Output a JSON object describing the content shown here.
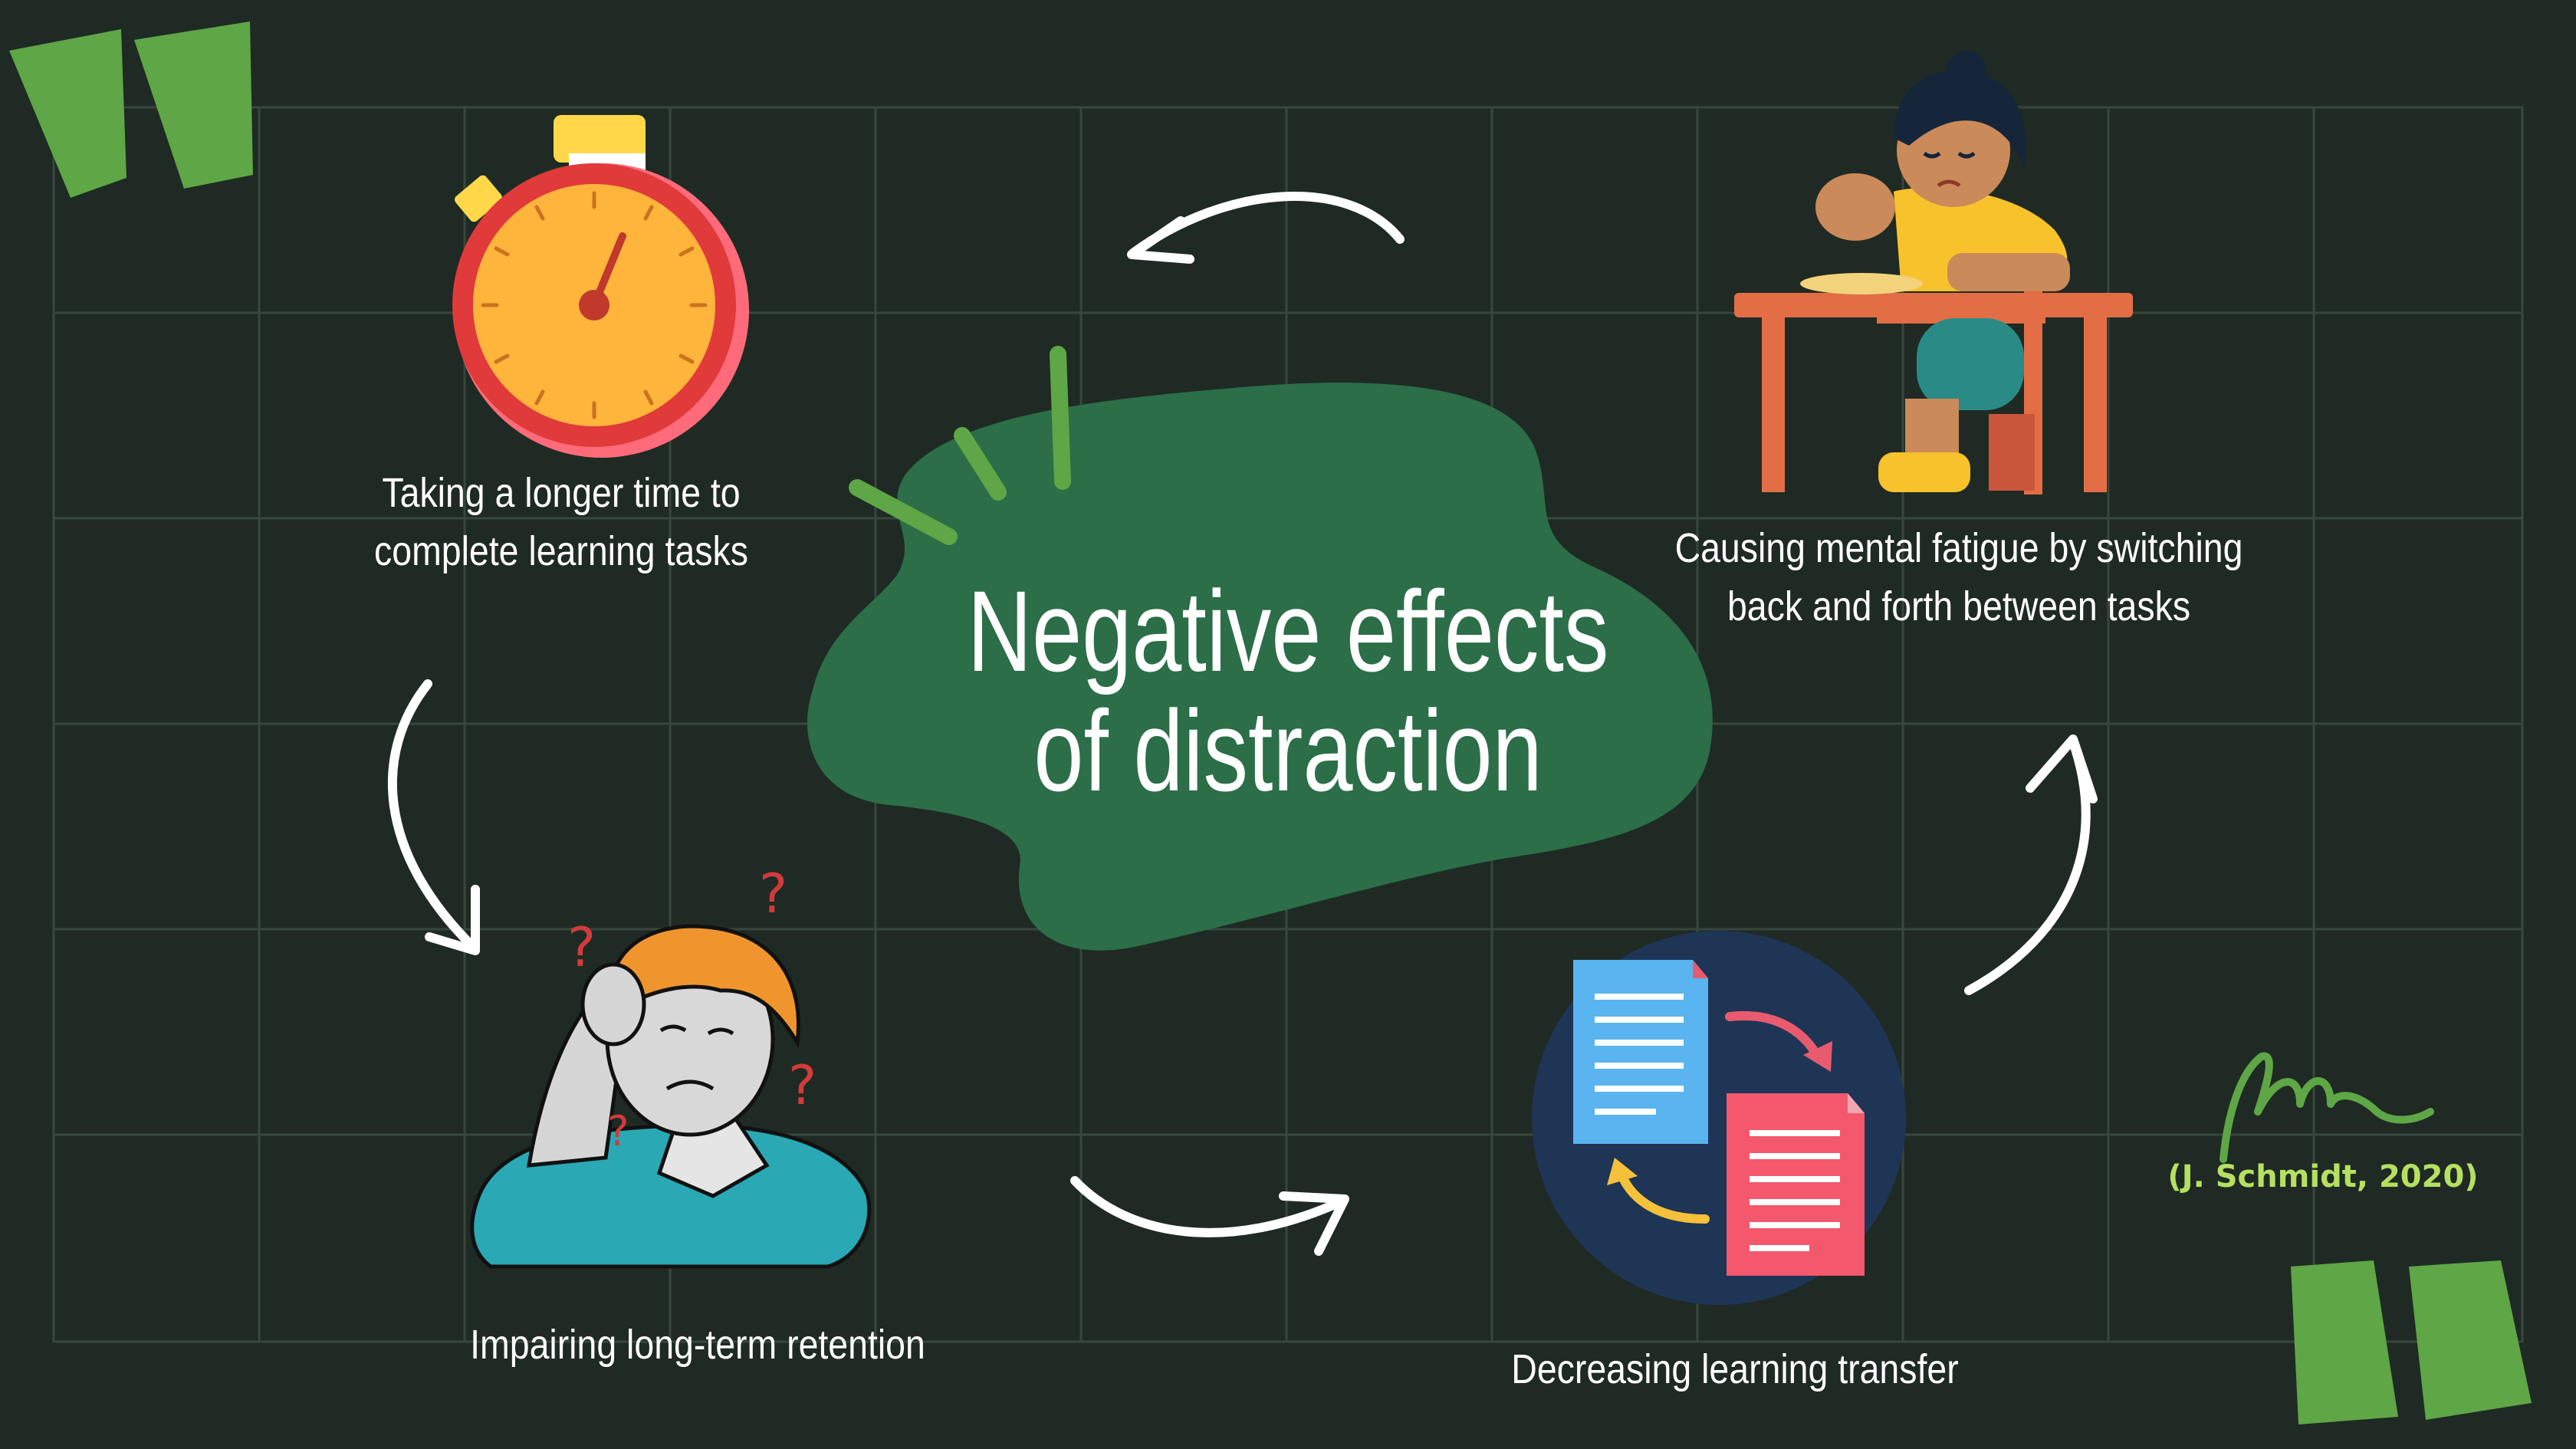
{
  "title": {
    "line1": "Negative effects",
    "line2": "of distraction"
  },
  "effects": [
    {
      "line1": "Taking a longer time to",
      "line2": "complete learning tasks",
      "icon": "stopwatch-icon"
    },
    {
      "line1": "Causing mental fatigue by switching",
      "line2": "back and forth between tasks",
      "icon": "tired-student-at-desk-icon"
    },
    {
      "line1": "Decreasing learning transfer",
      "icon": "documents-transfer-icon"
    },
    {
      "line1": "Impairing long-term retention",
      "icon": "confused-man-icon"
    }
  ],
  "citation": "(J. Schmidt, 2020)",
  "colors": {
    "background": "#1f2a24",
    "grid": "#37473d",
    "blob": "#2b6e48",
    "accent_green": "#5ea646",
    "citation": "#b5e061",
    "text": "#ffffff"
  }
}
